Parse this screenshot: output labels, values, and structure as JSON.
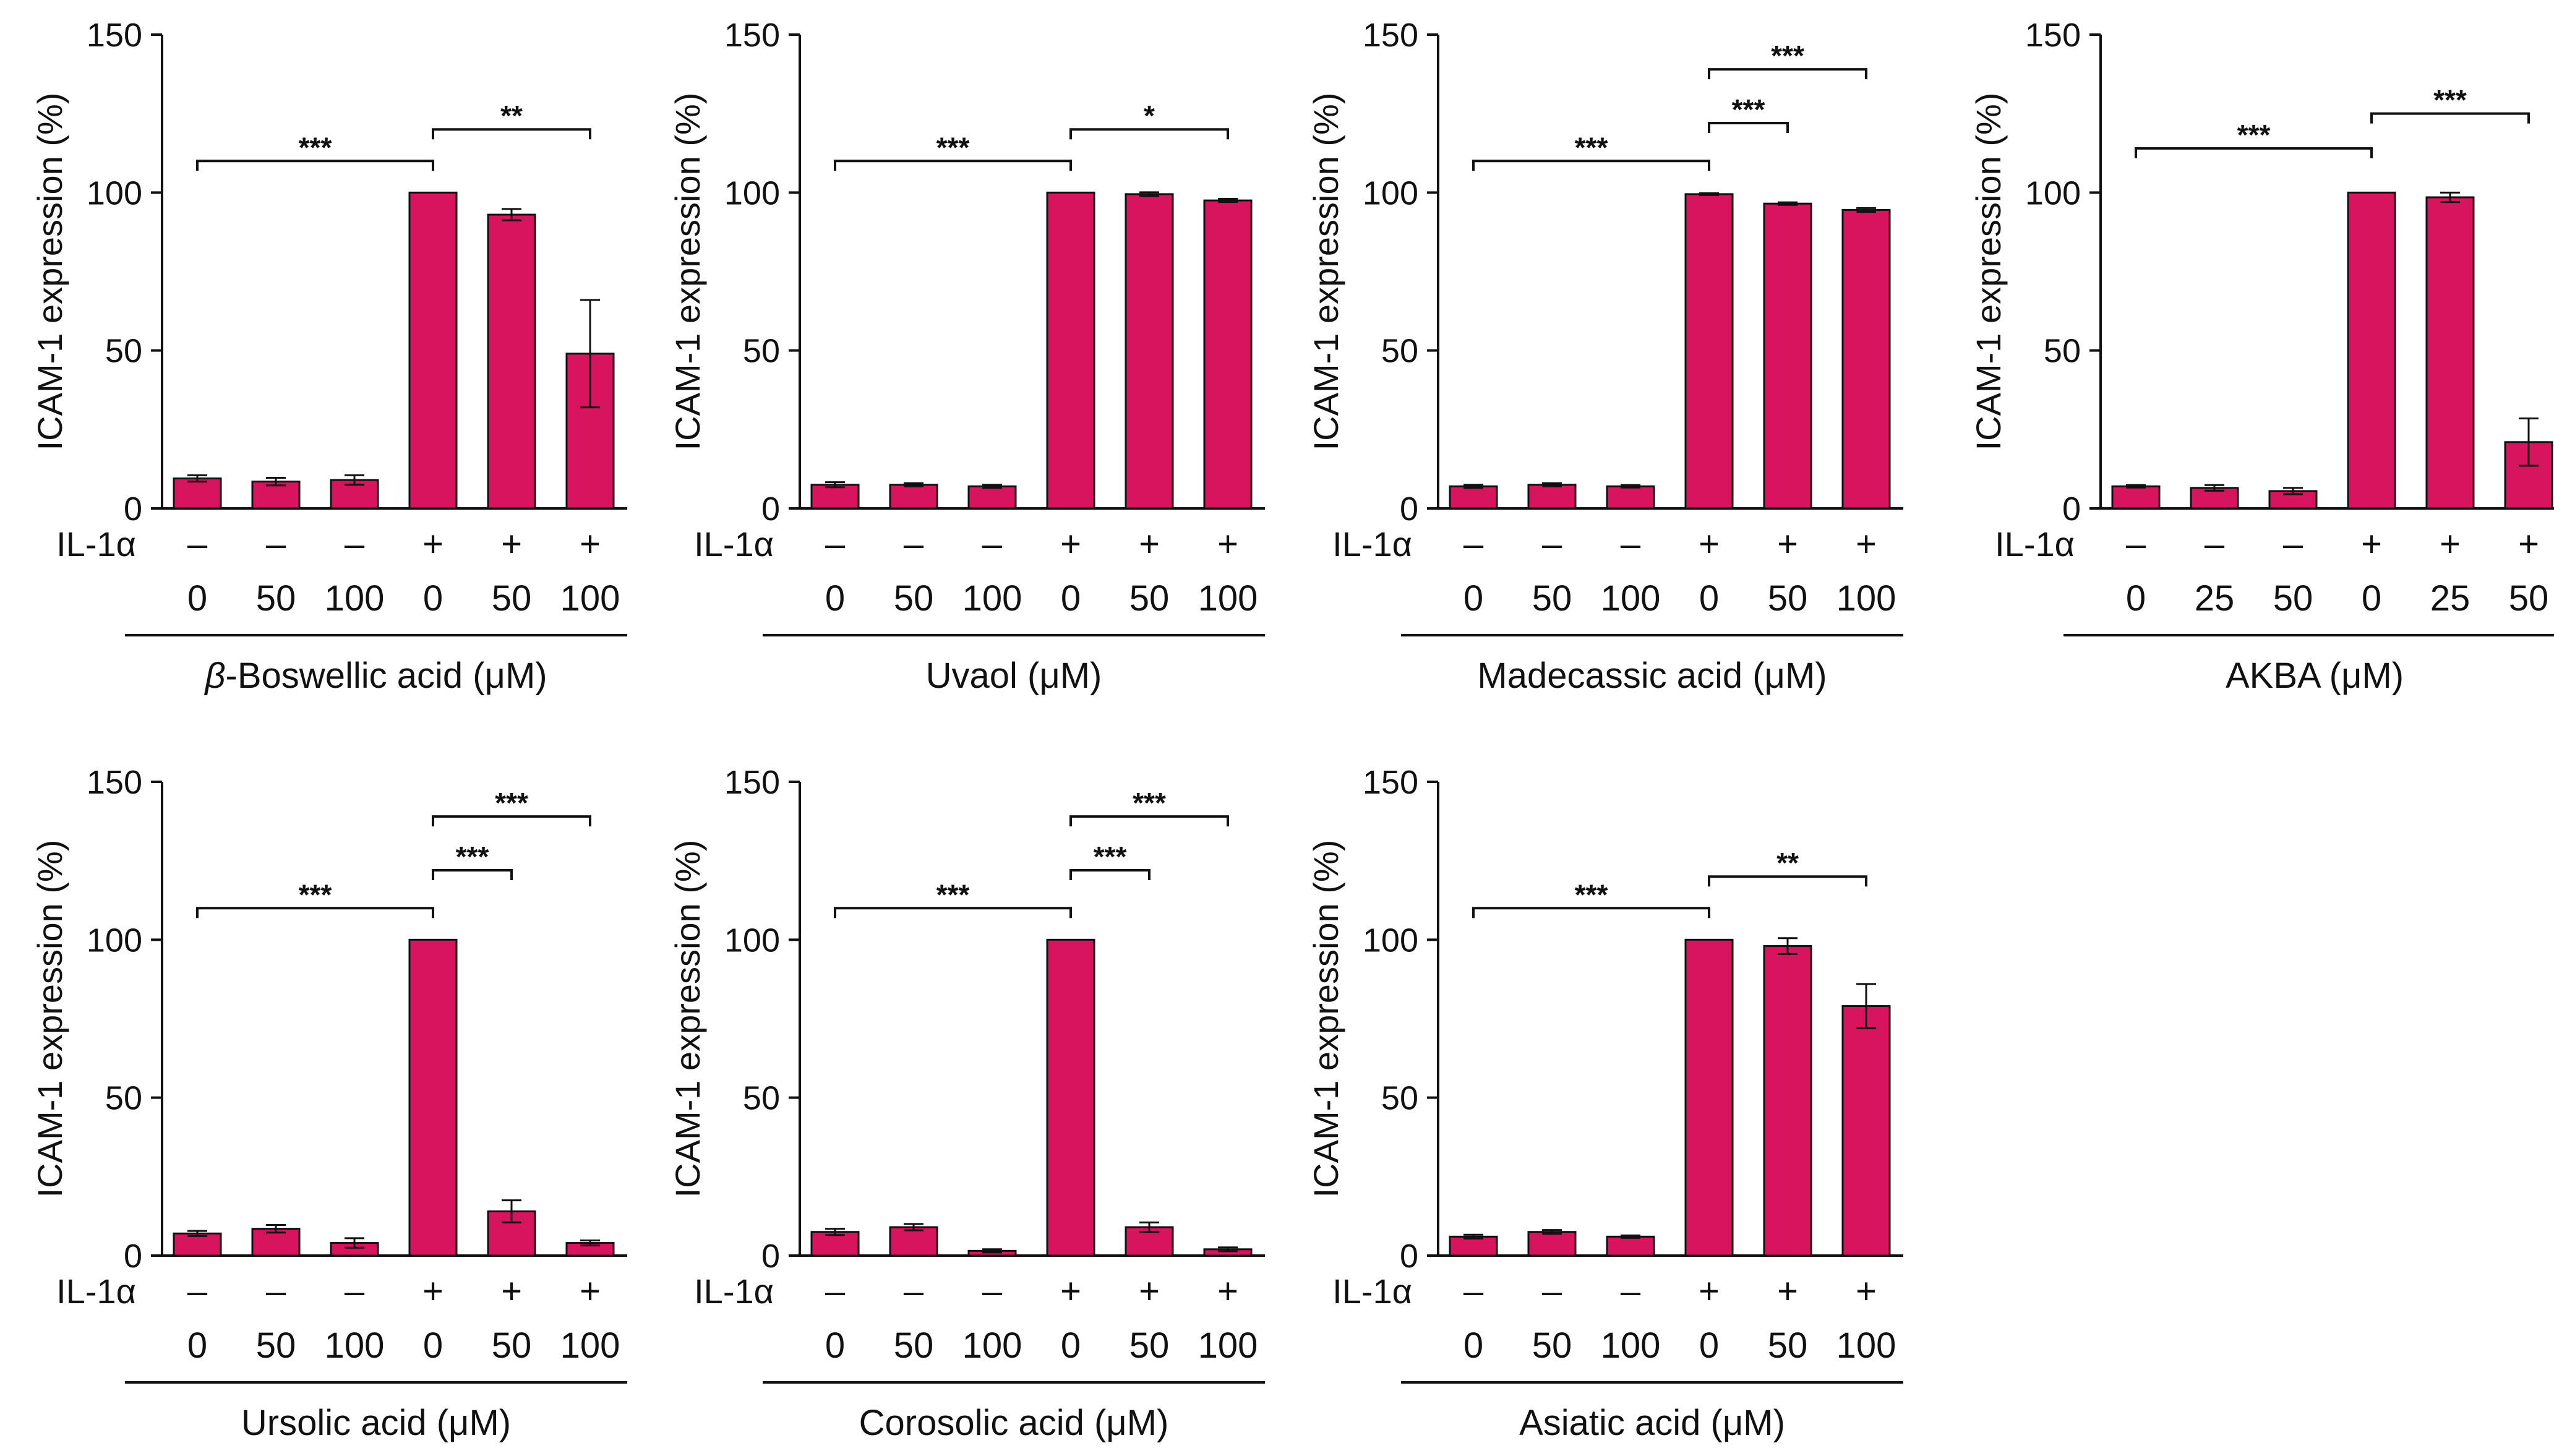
{
  "chart_data": [
    {
      "type": "bar",
      "xlabel": "β-Boswellic acid (μM)",
      "xlabel_italic_prefix": "β",
      "ylabel": "ICAM-1 expression (%)",
      "ylim": [
        0,
        150
      ],
      "yticks": [
        "0",
        "50",
        "100",
        "150"
      ],
      "il_label": "IL-1α",
      "il_row": [
        "–",
        "–",
        "–",
        "+",
        "+",
        "+"
      ],
      "concentrations": [
        "0",
        "50",
        "100",
        "0",
        "50",
        "100"
      ],
      "values": [
        9.5,
        8.5,
        9,
        100,
        93,
        49
      ],
      "errors": [
        1,
        1.2,
        1.5,
        0,
        1.8,
        17
      ],
      "bar_color": "#d8145f",
      "brackets": [
        {
          "from": 0,
          "to": 3,
          "y": 110,
          "label": "***"
        },
        {
          "from": 3,
          "to": 5,
          "y": 120,
          "label": "**"
        }
      ]
    },
    {
      "type": "bar",
      "xlabel": "Uvaol (μM)",
      "ylabel": "ICAM-1 expression (%)",
      "ylim": [
        0,
        150
      ],
      "yticks": [
        "0",
        "50",
        "100",
        "150"
      ],
      "il_label": "IL-1α",
      "il_row": [
        "–",
        "–",
        "–",
        "+",
        "+",
        "+"
      ],
      "concentrations": [
        "0",
        "50",
        "100",
        "0",
        "50",
        "100"
      ],
      "values": [
        7.5,
        7.5,
        7,
        100,
        99.5,
        97.5
      ],
      "errors": [
        0.8,
        0.5,
        0.5,
        0,
        0.6,
        0.5
      ],
      "bar_color": "#d8145f",
      "brackets": [
        {
          "from": 0,
          "to": 3,
          "y": 110,
          "label": "***"
        },
        {
          "from": 3,
          "to": 5,
          "y": 120,
          "label": "*"
        }
      ]
    },
    {
      "type": "bar",
      "xlabel": "Madecassic acid (μM)",
      "ylabel": "ICAM-1 expression (%)",
      "ylim": [
        0,
        150
      ],
      "yticks": [
        "0",
        "50",
        "100",
        "150"
      ],
      "il_label": "IL-1α",
      "il_row": [
        "–",
        "–",
        "–",
        "+",
        "+",
        "+"
      ],
      "concentrations": [
        "0",
        "50",
        "100",
        "0",
        "50",
        "100"
      ],
      "values": [
        7,
        7.5,
        7,
        99.5,
        96.5,
        94.5
      ],
      "errors": [
        0.5,
        0.5,
        0.4,
        0.3,
        0.4,
        0.6
      ],
      "bar_color": "#d8145f",
      "brackets": [
        {
          "from": 0,
          "to": 3,
          "y": 110,
          "label": "***"
        },
        {
          "from": 3,
          "to": 4,
          "y": 122,
          "label": "***"
        },
        {
          "from": 3,
          "to": 5,
          "y": 139,
          "label": "***"
        }
      ]
    },
    {
      "type": "bar",
      "xlabel": "AKBA (μM)",
      "ylabel": "ICAM-1 expression (%)",
      "ylim": [
        0,
        150
      ],
      "yticks": [
        "0",
        "50",
        "100",
        "150"
      ],
      "il_label": "IL-1α",
      "il_row": [
        "–",
        "–",
        "–",
        "+",
        "+",
        "+"
      ],
      "concentrations": [
        "0",
        "25",
        "50",
        "0",
        "25",
        "50"
      ],
      "values": [
        7,
        6.5,
        5.5,
        100,
        98.5,
        21
      ],
      "errors": [
        0.4,
        0.9,
        1,
        0,
        1.5,
        7.5
      ],
      "bar_color": "#d8145f",
      "brackets": [
        {
          "from": 0,
          "to": 3,
          "y": 114,
          "label": "***"
        },
        {
          "from": 3,
          "to": 5,
          "y": 125,
          "label": "***"
        }
      ]
    },
    {
      "type": "bar",
      "xlabel": "Ursolic acid (μM)",
      "ylabel": "ICAM-1 expression (%)",
      "ylim": [
        0,
        150
      ],
      "yticks": [
        "0",
        "50",
        "100",
        "150"
      ],
      "il_label": "IL-1α",
      "il_row": [
        "–",
        "–",
        "–",
        "+",
        "+",
        "+"
      ],
      "concentrations": [
        "0",
        "50",
        "100",
        "0",
        "50",
        "100"
      ],
      "values": [
        7,
        8.5,
        4,
        100,
        14,
        4
      ],
      "errors": [
        0.8,
        1.2,
        1.5,
        0,
        3.5,
        0.8
      ],
      "bar_color": "#d8145f",
      "brackets": [
        {
          "from": 0,
          "to": 3,
          "y": 110,
          "label": "***"
        },
        {
          "from": 3,
          "to": 4,
          "y": 122,
          "label": "***"
        },
        {
          "from": 3,
          "to": 5,
          "y": 139,
          "label": "***"
        }
      ]
    },
    {
      "type": "bar",
      "xlabel": "Corosolic acid (μM)",
      "ylabel": "ICAM-1 expression (%)",
      "ylim": [
        0,
        150
      ],
      "yticks": [
        "0",
        "50",
        "100",
        "150"
      ],
      "il_label": "IL-1α",
      "il_row": [
        "–",
        "–",
        "–",
        "+",
        "+",
        "+"
      ],
      "concentrations": [
        "0",
        "50",
        "100",
        "0",
        "50",
        "100"
      ],
      "values": [
        7.5,
        9,
        1.5,
        100,
        9,
        2
      ],
      "errors": [
        1,
        1,
        0.5,
        0,
        1.5,
        0.6
      ],
      "bar_color": "#d8145f",
      "brackets": [
        {
          "from": 0,
          "to": 3,
          "y": 110,
          "label": "***"
        },
        {
          "from": 3,
          "to": 4,
          "y": 122,
          "label": "***"
        },
        {
          "from": 3,
          "to": 5,
          "y": 139,
          "label": "***"
        }
      ]
    },
    {
      "type": "bar",
      "xlabel": "Asiatic acid (μM)",
      "ylabel": "ICAM-1 expression (%)",
      "ylim": [
        0,
        150
      ],
      "yticks": [
        "0",
        "50",
        "100",
        "150"
      ],
      "il_label": "IL-1α",
      "il_row": [
        "–",
        "–",
        "–",
        "+",
        "+",
        "+"
      ],
      "concentrations": [
        "0",
        "50",
        "100",
        "0",
        "50",
        "100"
      ],
      "values": [
        6,
        7.5,
        6,
        100,
        98,
        79
      ],
      "errors": [
        0.6,
        0.6,
        0.4,
        0,
        2.5,
        7
      ],
      "bar_color": "#d8145f",
      "brackets": [
        {
          "from": 0,
          "to": 3,
          "y": 110,
          "label": "***"
        },
        {
          "from": 3,
          "to": 5,
          "y": 120,
          "label": "**"
        }
      ]
    }
  ]
}
